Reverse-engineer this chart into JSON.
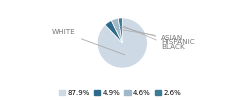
{
  "labels": [
    "WHITE",
    "ASIAN",
    "HISPANIC",
    "BLACK"
  ],
  "values": [
    87.9,
    4.9,
    4.6,
    2.6
  ],
  "colors": [
    "#cdd9e5",
    "#2e6b8a",
    "#a0b8c8",
    "#3d7a96"
  ],
  "legend_colors": [
    "#cdd9e5",
    "#2e6b8a",
    "#a0b8c8",
    "#3d7a96"
  ],
  "legend_labels": [
    "87.9%",
    "4.9%",
    "4.6%",
    "2.6%"
  ],
  "background_color": "#ffffff",
  "label_fontsize": 5.2,
  "legend_fontsize": 5.0,
  "text_color": "#777777"
}
